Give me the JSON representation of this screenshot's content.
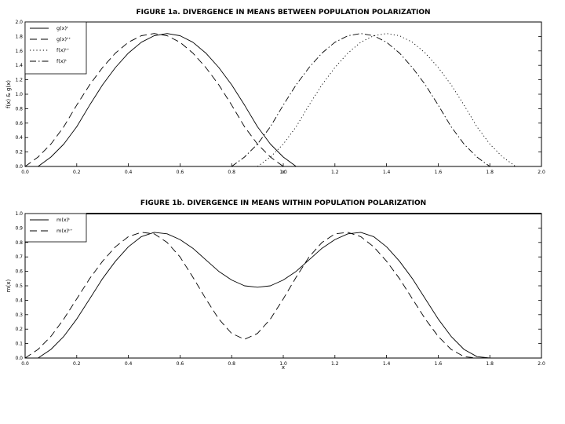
{
  "chart_data": [
    {
      "type": "line",
      "title": "FIGURE 1a. DIVERGENCE IN MEANS BETWEEN POPULATION POLARIZATION",
      "xlabel": "x",
      "ylabel": "f(x) & g(x)",
      "xlim": [
        0.0,
        2.0
      ],
      "ylim": [
        0.0,
        2.0
      ],
      "xticks": [
        "0.0",
        "0.2",
        "0.4",
        "0.6",
        "0.8",
        "1.0",
        "1.2",
        "1.4",
        "1.6",
        "1.8",
        "2.0"
      ],
      "yticks": [
        "0.0",
        "0.2",
        "0.4",
        "0.6",
        "0.8",
        "1.0",
        "1.2",
        "1.4",
        "1.6",
        "1.8",
        "2.0"
      ],
      "legend_position": "top-left",
      "grid": false,
      "series": [
        {
          "name": "g(x)ᵗ",
          "style": "solid",
          "x": [
            0.05,
            0.1,
            0.15,
            0.2,
            0.25,
            0.3,
            0.35,
            0.4,
            0.45,
            0.5,
            0.55,
            0.6,
            0.65,
            0.7,
            0.75,
            0.8,
            0.85,
            0.9,
            0.95,
            1.0,
            1.05
          ],
          "y": [
            0.0,
            0.13,
            0.31,
            0.55,
            0.85,
            1.13,
            1.37,
            1.57,
            1.72,
            1.81,
            1.84,
            1.81,
            1.72,
            1.57,
            1.37,
            1.13,
            0.85,
            0.55,
            0.31,
            0.13,
            0.0
          ]
        },
        {
          "name": "g(x)ᵗ⁺",
          "style": "dashed",
          "x": [
            0.0,
            0.05,
            0.1,
            0.15,
            0.2,
            0.25,
            0.3,
            0.35,
            0.4,
            0.45,
            0.5,
            0.55,
            0.6,
            0.65,
            0.7,
            0.75,
            0.8,
            0.85,
            0.9,
            0.95,
            1.0
          ],
          "y": [
            0.0,
            0.13,
            0.31,
            0.55,
            0.85,
            1.13,
            1.37,
            1.57,
            1.72,
            1.81,
            1.84,
            1.81,
            1.72,
            1.57,
            1.37,
            1.13,
            0.85,
            0.55,
            0.31,
            0.13,
            0.0
          ]
        },
        {
          "name": "f(x)ᵗ⁺",
          "style": "dotted",
          "x": [
            0.9,
            0.95,
            1.0,
            1.05,
            1.1,
            1.15,
            1.2,
            1.25,
            1.3,
            1.35,
            1.4,
            1.45,
            1.5,
            1.55,
            1.6,
            1.65,
            1.7,
            1.75,
            1.8,
            1.85,
            1.9
          ],
          "y": [
            0.0,
            0.13,
            0.31,
            0.55,
            0.85,
            1.13,
            1.37,
            1.57,
            1.72,
            1.81,
            1.84,
            1.81,
            1.72,
            1.57,
            1.37,
            1.13,
            0.85,
            0.55,
            0.31,
            0.13,
            0.0
          ]
        },
        {
          "name": "f(x)ᵗ",
          "style": "dashdot",
          "x": [
            0.8,
            0.85,
            0.9,
            0.95,
            1.0,
            1.05,
            1.1,
            1.15,
            1.2,
            1.25,
            1.3,
            1.35,
            1.4,
            1.45,
            1.5,
            1.55,
            1.6,
            1.65,
            1.7,
            1.75,
            1.8
          ],
          "y": [
            0.0,
            0.13,
            0.31,
            0.55,
            0.85,
            1.13,
            1.37,
            1.57,
            1.72,
            1.81,
            1.84,
            1.81,
            1.72,
            1.57,
            1.37,
            1.13,
            0.85,
            0.55,
            0.31,
            0.13,
            0.0
          ]
        }
      ]
    },
    {
      "type": "line",
      "title": "FIGURE 1b. DIVERGENCE IN MEANS WITHIN POPULATION POLARIZATION",
      "xlabel": "x",
      "ylabel": "m(x)",
      "xlim": [
        0.0,
        2.0
      ],
      "ylim": [
        0.0,
        1.0
      ],
      "xticks": [
        "0.0",
        "0.2",
        "0.4",
        "0.6",
        "0.8",
        "1.0",
        "1.2",
        "1.4",
        "1.6",
        "1.8",
        "2.0"
      ],
      "yticks": [
        "0.0",
        "0.1",
        "0.2",
        "0.3",
        "0.4",
        "0.5",
        "0.6",
        "0.7",
        "0.8",
        "0.9",
        "1.0"
      ],
      "legend_position": "top-left",
      "grid": false,
      "series": [
        {
          "name": "m(x)ᵗ",
          "style": "solid",
          "x": [
            0.05,
            0.1,
            0.15,
            0.2,
            0.25,
            0.3,
            0.35,
            0.4,
            0.45,
            0.5,
            0.55,
            0.6,
            0.65,
            0.7,
            0.75,
            0.8,
            0.85,
            0.9,
            0.95,
            1.0,
            1.05,
            1.1,
            1.15,
            1.2,
            1.25,
            1.3,
            1.35,
            1.4,
            1.45,
            1.5,
            1.55,
            1.6,
            1.65,
            1.7,
            1.75,
            1.8
          ],
          "y": [
            0.0,
            0.06,
            0.15,
            0.27,
            0.41,
            0.55,
            0.67,
            0.77,
            0.84,
            0.87,
            0.86,
            0.82,
            0.76,
            0.68,
            0.6,
            0.54,
            0.5,
            0.49,
            0.5,
            0.54,
            0.6,
            0.68,
            0.76,
            0.82,
            0.86,
            0.87,
            0.84,
            0.77,
            0.67,
            0.55,
            0.41,
            0.27,
            0.15,
            0.06,
            0.01,
            0.0
          ]
        },
        {
          "name": "m(x)ᵗ⁺",
          "style": "dashed",
          "x": [
            0.0,
            0.05,
            0.1,
            0.15,
            0.2,
            0.25,
            0.3,
            0.35,
            0.4,
            0.45,
            0.5,
            0.55,
            0.6,
            0.65,
            0.7,
            0.75,
            0.8,
            0.85,
            0.9,
            0.95,
            1.0,
            1.05,
            1.1,
            1.15,
            1.2,
            1.25,
            1.3,
            1.35,
            1.4,
            1.45,
            1.5,
            1.55,
            1.6,
            1.65,
            1.7,
            1.75,
            1.8,
            1.85,
            1.9
          ],
          "y": [
            0.0,
            0.06,
            0.15,
            0.27,
            0.41,
            0.55,
            0.67,
            0.77,
            0.84,
            0.87,
            0.86,
            0.8,
            0.7,
            0.56,
            0.41,
            0.27,
            0.17,
            0.13,
            0.17,
            0.27,
            0.41,
            0.56,
            0.7,
            0.8,
            0.86,
            0.87,
            0.84,
            0.77,
            0.67,
            0.55,
            0.41,
            0.27,
            0.15,
            0.06,
            0.01,
            0.0,
            0.0,
            0.0,
            0.0
          ]
        }
      ]
    }
  ]
}
